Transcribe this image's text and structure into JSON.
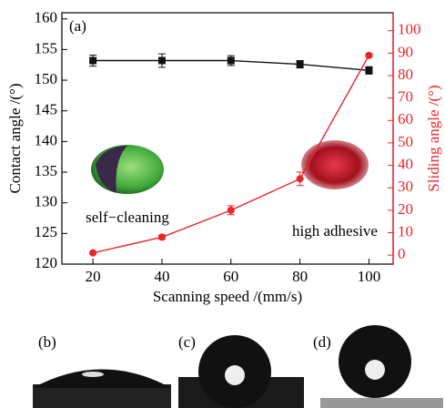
{
  "chart_data": {
    "type": "line",
    "panel_label": "(a)",
    "xlabel": "Scanning speed /(mm/s)",
    "ylabel": "Contact angle /(°)",
    "y2label": "Sliding angle /(°)",
    "x": [
      20,
      40,
      60,
      80,
      100
    ],
    "series": [
      {
        "color": "#111111",
        "marker": "square",
        "values": [
          153.2,
          153.2,
          153.2,
          152.6,
          151.6
        ],
        "errors": [
          0.9,
          1.1,
          0.8,
          0.6,
          0.6
        ]
      },
      {
        "color": "#e8262a",
        "marker": "circle",
        "axis": "y2",
        "values": [
          1,
          8,
          20,
          34,
          89
        ],
        "errors": [
          0.6,
          1,
          2,
          3,
          0.8
        ]
      }
    ],
    "xlim": [
      11,
      107
    ],
    "xticks": [
      20,
      40,
      60,
      80,
      100
    ],
    "ylim": [
      120,
      161
    ],
    "yticks": [
      120,
      125,
      130,
      135,
      140,
      145,
      150,
      155,
      160
    ],
    "y2lim": [
      -4,
      108
    ],
    "y2ticks": [
      0,
      10,
      20,
      30,
      40,
      50,
      60,
      70,
      80,
      90,
      100
    ],
    "annotations": [
      "self−cleaning",
      "high adhesive"
    ]
  },
  "panels": [
    "(b)",
    "(c)",
    "(d)"
  ]
}
